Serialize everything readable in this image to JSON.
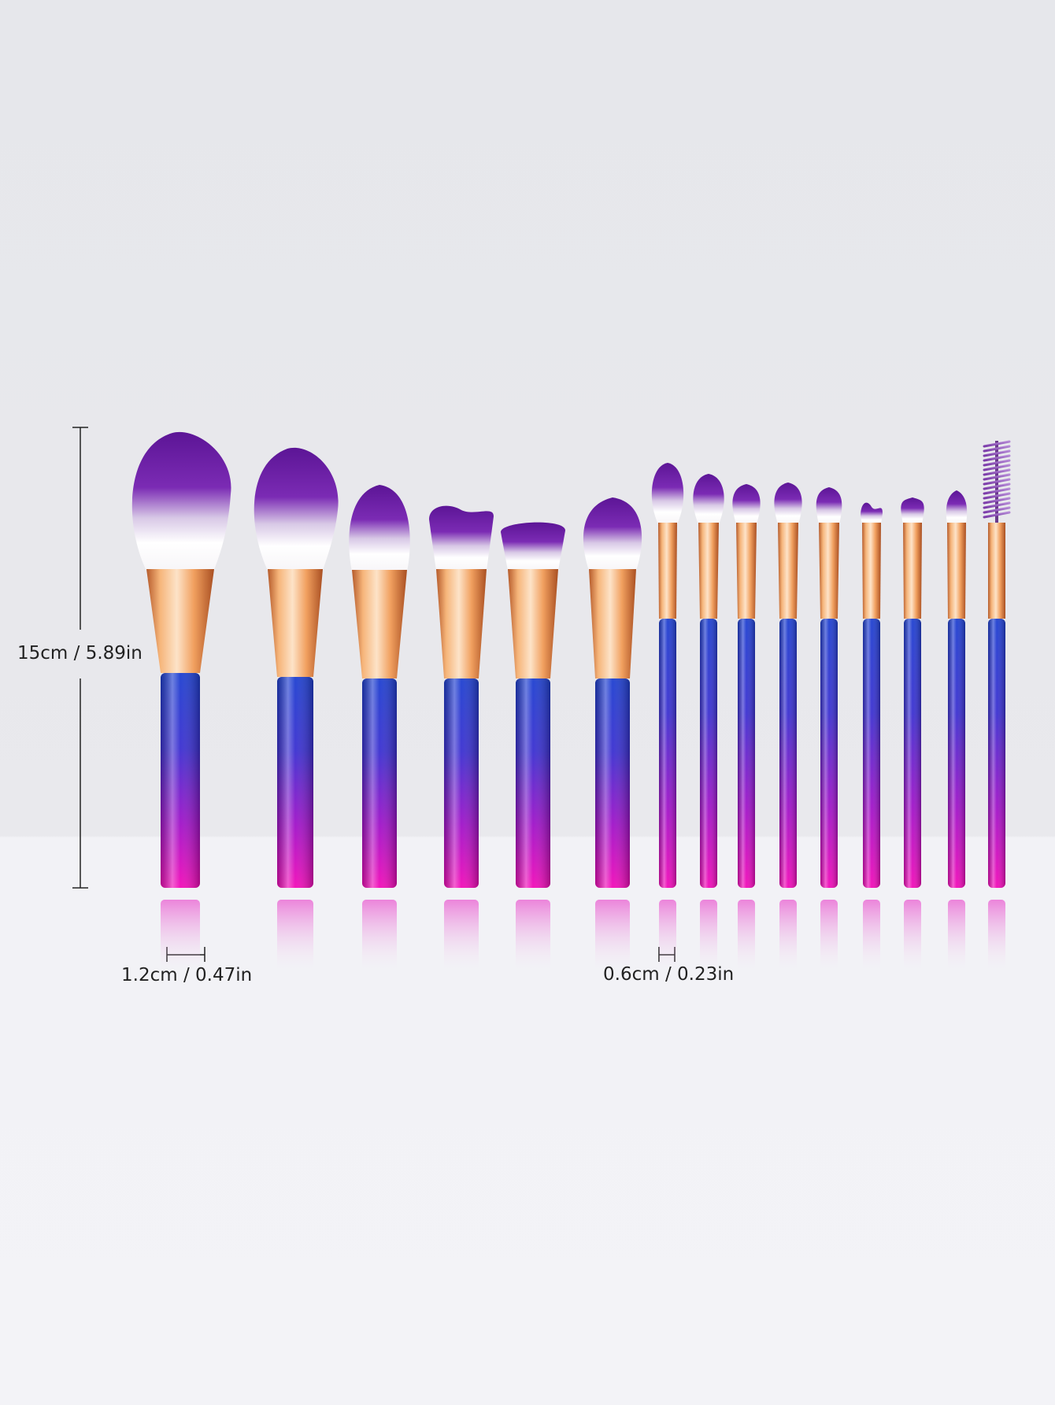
{
  "measurements": {
    "height_label": "15cm / 5.89in",
    "large_width_label": "1.2cm / 0.47in",
    "small_width_label": "0.6cm / 0.23in"
  },
  "product": {
    "item": "makeup-brush-set",
    "brush_count": 15,
    "colors": {
      "handle_top": "#1d3fd0",
      "handle_bottom": "#f20ab8",
      "ferrule": "#f1a05f",
      "bristle_tip": "#6a1aa8",
      "bristle_base": "#ffffff",
      "background_top": "#e6e7eb",
      "background_floor": "#f3f3f7"
    }
  }
}
